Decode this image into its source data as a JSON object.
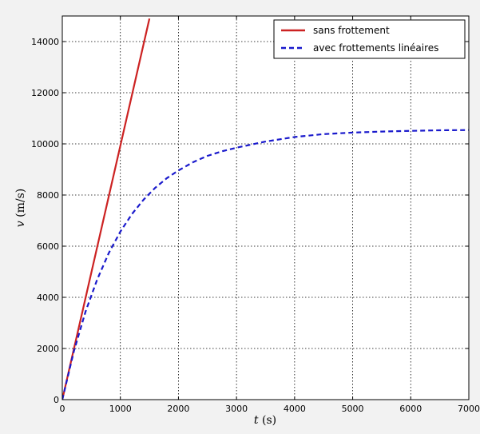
{
  "chart_data": {
    "type": "line",
    "title": "",
    "xlabel_symbol": "t",
    "xlabel_unit": " (s)",
    "ylabel_symbol": "v",
    "ylabel_unit": " (m/s)",
    "xlim": [
      0,
      7000
    ],
    "ylim": [
      0,
      15000
    ],
    "x_ticks": [
      0,
      1000,
      2000,
      3000,
      4000,
      5000,
      6000,
      7000
    ],
    "y_ticks": [
      0,
      2000,
      4000,
      6000,
      8000,
      10000,
      12000,
      14000
    ],
    "x_tick_labels": [
      "0",
      "1000",
      "2000",
      "3000",
      "4000",
      "5000",
      "6000",
      "7000"
    ],
    "y_tick_labels": [
      "0",
      "2000",
      "4000",
      "6000",
      "8000",
      "10000",
      "12000",
      "14000"
    ],
    "grid": true,
    "legend_position": "top-right",
    "series": [
      {
        "name": "sans frottement",
        "color": "#cc2222",
        "style": "solid",
        "x": [
          0,
          1500
        ],
        "y": [
          0,
          14900
        ]
      },
      {
        "name": "avec frottements linéaires",
        "color": "#1a1acc",
        "style": "dashed",
        "x": [
          0,
          200,
          400,
          600,
          800,
          1000,
          1200,
          1400,
          1600,
          1800,
          2000,
          2250,
          2500,
          2750,
          3000,
          3500,
          4000,
          4500,
          5000,
          5500,
          6000,
          6500,
          7000
        ],
        "y": [
          0,
          1890,
          3440,
          4690,
          5730,
          6570,
          7260,
          7820,
          8280,
          8660,
          8960,
          9280,
          9530,
          9710,
          9850,
          10090,
          10270,
          10380,
          10440,
          10480,
          10510,
          10530,
          10540
        ]
      }
    ]
  }
}
